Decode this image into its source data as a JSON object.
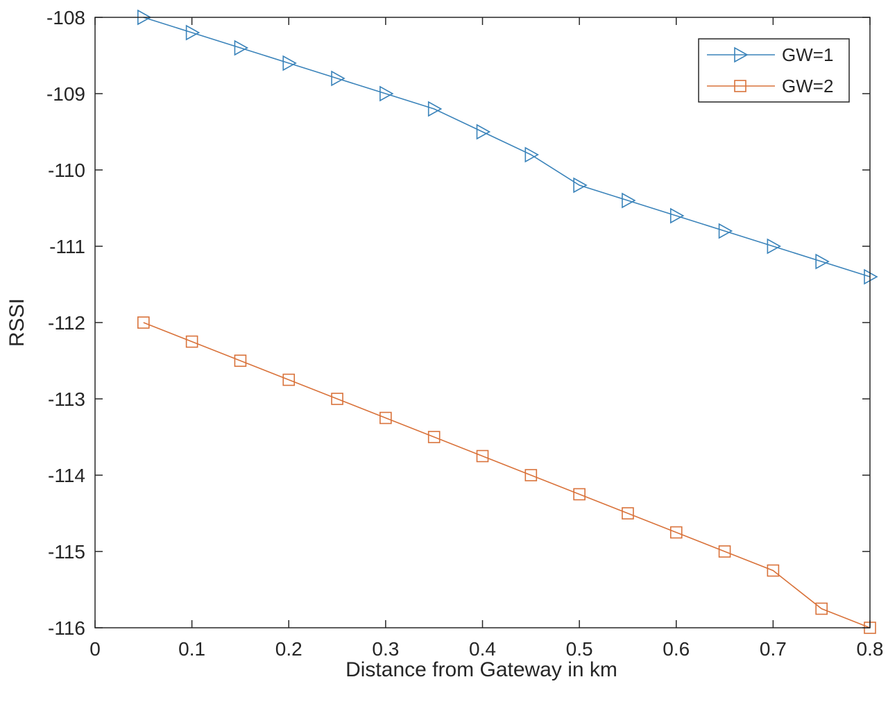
{
  "chart_data": {
    "type": "line",
    "title": "",
    "xlabel": "Distance from Gateway in km",
    "ylabel": "RSSI",
    "xlim": [
      0,
      0.8
    ],
    "ylim": [
      -116,
      -108
    ],
    "x_ticks": [
      "0",
      "0.1",
      "0.2",
      "0.3",
      "0.4",
      "0.5",
      "0.6",
      "0.7",
      "0.8"
    ],
    "y_ticks": [
      "-108",
      "-109",
      "-110",
      "-111",
      "-112",
      "-113",
      "-114",
      "-115",
      "-116"
    ],
    "grid": false,
    "legend_position": "top-right",
    "x": [
      0.05,
      0.1,
      0.15,
      0.2,
      0.25,
      0.3,
      0.35,
      0.4,
      0.45,
      0.5,
      0.55,
      0.6,
      0.65,
      0.7,
      0.75,
      0.8
    ],
    "series": [
      {
        "name": "GW=1",
        "color": "#3A83BA",
        "marker": "triangle-right",
        "values": [
          -108.0,
          -108.2,
          -108.4,
          -108.6,
          -108.8,
          -109.0,
          -109.2,
          -109.5,
          -109.8,
          -110.2,
          -110.4,
          -110.6,
          -110.8,
          -111.0,
          -111.2,
          -111.4
        ]
      },
      {
        "name": "GW=2",
        "color": "#D9723A",
        "marker": "square",
        "values": [
          -112.0,
          -112.25,
          -112.5,
          -112.75,
          -113.0,
          -113.25,
          -113.5,
          -113.75,
          -114.0,
          -114.25,
          -114.5,
          -114.75,
          -115.0,
          -115.25,
          -115.75,
          -116.0
        ]
      }
    ]
  }
}
